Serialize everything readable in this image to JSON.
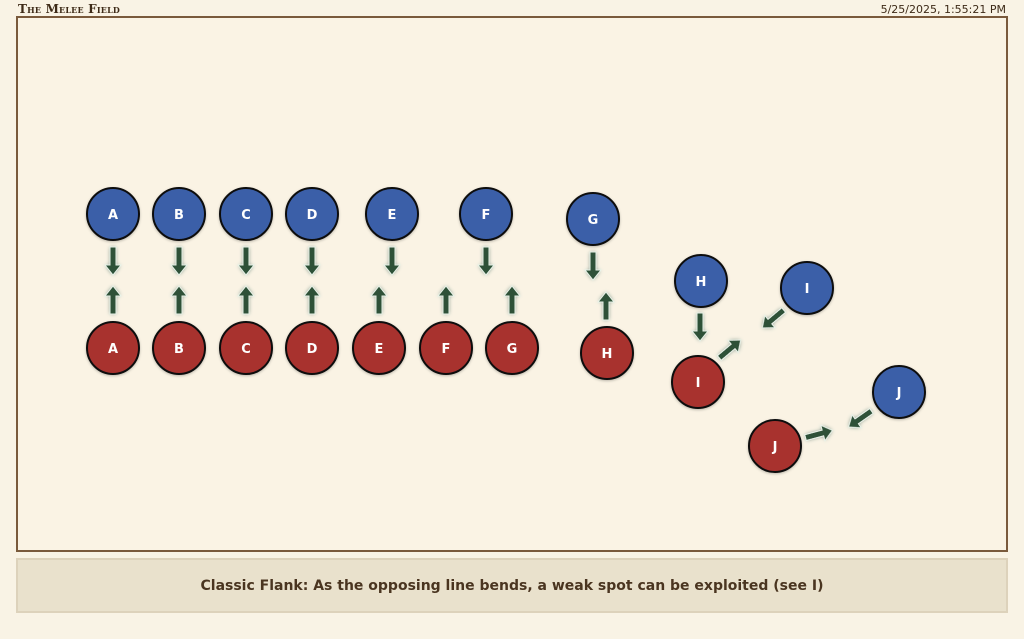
{
  "header": {
    "title": "The Melee Field",
    "timestamp": "5/25/2025, 1:55:21 PM"
  },
  "caption": "Classic Flank: As the opposing line bends, a weak spot can be exploited (see I)",
  "colors": {
    "blue_team": "#3a5ea8",
    "red_team": "#a8302f",
    "arrow": "#2e5138",
    "border": "#7a5a3c"
  },
  "units": {
    "blue": [
      "A",
      "B",
      "C",
      "D",
      "E",
      "F",
      "G",
      "H",
      "I",
      "J"
    ],
    "red": [
      "A",
      "B",
      "C",
      "D",
      "E",
      "F",
      "G",
      "H",
      "I",
      "J"
    ]
  },
  "icons": {
    "arrow": "attack-arrow-icon"
  }
}
